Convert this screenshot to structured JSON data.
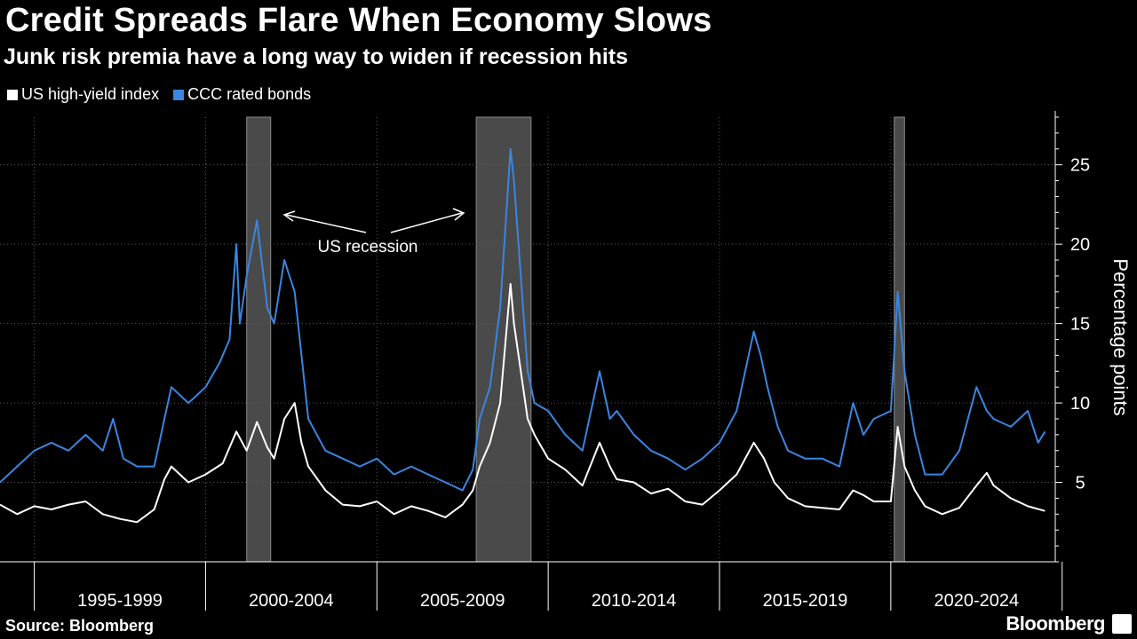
{
  "header": {
    "title": "Credit Spreads Flare When Economy Slows",
    "subtitle": "Junk risk premia have a long way to widen if recession hits"
  },
  "footer": {
    "source": "Source: Bloomberg",
    "brand": "Bloomberg"
  },
  "colors": {
    "background": "#000000",
    "hy": "#ffffff",
    "ccc": "#3a86e0",
    "recession": "#4a4a4a"
  },
  "chart_data": {
    "type": "line",
    "x_unit": "year",
    "xlim": [
      1994.0,
      2024.8
    ],
    "ylim": [
      0,
      28
    ],
    "yticks": [
      5,
      10,
      15,
      20,
      25
    ],
    "ylabel": "Percentage points",
    "period_labels": [
      "1995-1999",
      "2000-2004",
      "2005-2009",
      "2010-2014",
      "2015-2019",
      "2020-2024"
    ],
    "period_boundaries": [
      1995.0,
      2000.0,
      2005.0,
      2010.0,
      2015.0,
      2020.0,
      2025.0
    ],
    "recessions": [
      [
        2001.2,
        2001.9
      ],
      [
        2007.9,
        2009.5
      ],
      [
        2020.1,
        2020.4
      ]
    ],
    "annotation": "US recession",
    "series": [
      {
        "name": "US high-yield index",
        "color": "#ffffff",
        "x": [
          1994.0,
          1994.5,
          1995.0,
          1995.5,
          1996.0,
          1996.5,
          1997.0,
          1997.5,
          1998.0,
          1998.5,
          1998.8,
          1999.0,
          1999.5,
          2000.0,
          2000.5,
          2000.9,
          2001.2,
          2001.5,
          2001.8,
          2002.0,
          2002.3,
          2002.6,
          2002.8,
          2003.0,
          2003.5,
          2004.0,
          2004.5,
          2005.0,
          2005.5,
          2006.0,
          2006.5,
          2007.0,
          2007.5,
          2007.8,
          2008.0,
          2008.3,
          2008.6,
          2008.9,
          2009.0,
          2009.2,
          2009.4,
          2009.6,
          2010.0,
          2010.5,
          2011.0,
          2011.5,
          2011.8,
          2012.0,
          2012.5,
          2013.0,
          2013.5,
          2014.0,
          2014.5,
          2015.0,
          2015.5,
          2016.0,
          2016.3,
          2016.6,
          2017.0,
          2017.5,
          2018.0,
          2018.5,
          2018.9,
          2019.2,
          2019.5,
          2020.0,
          2020.2,
          2020.4,
          2020.7,
          2021.0,
          2021.5,
          2022.0,
          2022.5,
          2022.8,
          2023.0,
          2023.5,
          2024.0,
          2024.5
        ],
        "values": [
          3.6,
          3.0,
          3.5,
          3.3,
          3.6,
          3.8,
          3.0,
          2.7,
          2.5,
          3.3,
          5.2,
          6.0,
          5.0,
          5.5,
          6.2,
          8.2,
          7.0,
          8.8,
          7.2,
          6.5,
          9.0,
          10.0,
          7.5,
          6.0,
          4.5,
          3.6,
          3.5,
          3.8,
          3.0,
          3.5,
          3.2,
          2.8,
          3.6,
          4.5,
          6.0,
          7.5,
          10.0,
          17.5,
          15.0,
          12.0,
          9.0,
          8.0,
          6.5,
          5.8,
          4.8,
          7.5,
          6.0,
          5.2,
          5.0,
          4.3,
          4.6,
          3.8,
          3.6,
          4.5,
          5.5,
          7.5,
          6.5,
          5.0,
          4.0,
          3.5,
          3.4,
          3.3,
          4.5,
          4.2,
          3.8,
          3.8,
          8.5,
          6.0,
          4.5,
          3.5,
          3.0,
          3.4,
          4.8,
          5.6,
          4.8,
          4.0,
          3.5,
          3.2
        ]
      },
      {
        "name": "CCC rated bonds",
        "color": "#3a86e0",
        "x": [
          1994.0,
          1994.5,
          1995.0,
          1995.5,
          1996.0,
          1996.5,
          1997.0,
          1997.3,
          1997.6,
          1998.0,
          1998.5,
          1998.8,
          1999.0,
          1999.5,
          2000.0,
          2000.4,
          2000.7,
          2000.9,
          2001.0,
          2001.2,
          2001.5,
          2001.8,
          2002.0,
          2002.3,
          2002.6,
          2002.8,
          2003.0,
          2003.5,
          2004.0,
          2004.5,
          2005.0,
          2005.5,
          2006.0,
          2006.5,
          2007.0,
          2007.5,
          2007.8,
          2008.0,
          2008.3,
          2008.6,
          2008.9,
          2009.0,
          2009.2,
          2009.4,
          2009.6,
          2010.0,
          2010.5,
          2011.0,
          2011.5,
          2011.8,
          2012.0,
          2012.5,
          2013.0,
          2013.5,
          2014.0,
          2014.5,
          2015.0,
          2015.5,
          2016.0,
          2016.2,
          2016.4,
          2016.7,
          2017.0,
          2017.5,
          2018.0,
          2018.5,
          2018.9,
          2019.2,
          2019.5,
          2020.0,
          2020.2,
          2020.4,
          2020.7,
          2021.0,
          2021.5,
          2022.0,
          2022.5,
          2022.8,
          2023.0,
          2023.5,
          2024.0,
          2024.3,
          2024.5
        ],
        "values": [
          5.0,
          6.0,
          7.0,
          7.5,
          7.0,
          8.0,
          7.0,
          9.0,
          6.5,
          6.0,
          6.0,
          9.0,
          11.0,
          10.0,
          11.0,
          12.5,
          14.0,
          20.0,
          15.0,
          18.0,
          21.5,
          16.0,
          15.0,
          19.0,
          17.0,
          13.0,
          9.0,
          7.0,
          6.5,
          6.0,
          6.5,
          5.5,
          6.0,
          5.5,
          5.0,
          4.5,
          5.8,
          9.0,
          11.0,
          16.0,
          26.0,
          24.0,
          18.0,
          12.0,
          10.0,
          9.5,
          8.0,
          7.0,
          12.0,
          9.0,
          9.5,
          8.0,
          7.0,
          6.5,
          5.8,
          6.5,
          7.5,
          9.5,
          14.5,
          13.0,
          11.0,
          8.5,
          7.0,
          6.5,
          6.5,
          6.0,
          10.0,
          8.0,
          9.0,
          9.5,
          17.0,
          12.0,
          8.0,
          5.5,
          5.5,
          7.0,
          11.0,
          9.5,
          9.0,
          8.5,
          9.5,
          7.5,
          8.2
        ]
      }
    ]
  }
}
